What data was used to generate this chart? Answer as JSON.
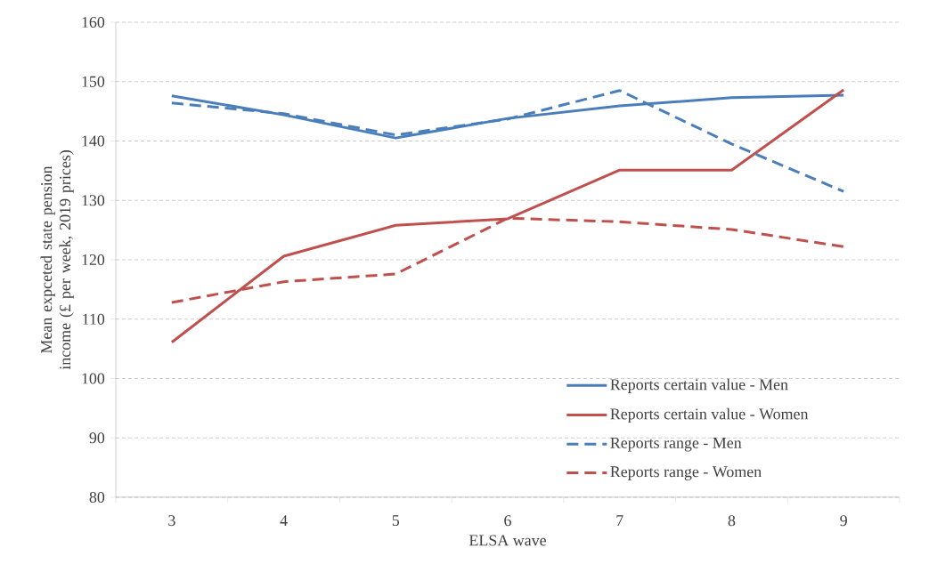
{
  "chart_data": {
    "type": "line",
    "xlabel": "ELSA wave",
    "ylabel": "Mean expceted state pension income (£ per week, 2019 prices)",
    "categories": [
      "3",
      "4",
      "5",
      "6",
      "7",
      "8",
      "9"
    ],
    "series": [
      {
        "name": "Reports certain value - Men",
        "color": "#4a7ebb",
        "line_style": "solid",
        "values": [
          147.6,
          144.4,
          140.5,
          143.8,
          145.9,
          147.3,
          147.7
        ]
      },
      {
        "name": "Reports certain value - Women",
        "color": "#c0504d",
        "line_style": "solid",
        "values": [
          106.1,
          120.6,
          125.8,
          126.9,
          135.1,
          135.1,
          148.6
        ]
      },
      {
        "name": "Reports range - Men",
        "color": "#4a7ebb",
        "line_style": "dashed",
        "values": [
          146.4,
          144.6,
          141.0,
          143.7,
          148.5,
          139.5,
          131.5
        ]
      },
      {
        "name": "Reports range - Women",
        "color": "#c0504d",
        "line_style": "dashed",
        "values": [
          112.8,
          116.3,
          117.6,
          127.0,
          126.4,
          125.1,
          122.2
        ]
      }
    ],
    "ylim": [
      80,
      160
    ],
    "yticks": [
      80,
      90,
      100,
      110,
      120,
      130,
      140,
      150,
      160
    ],
    "grid": "y",
    "legend": "bottom right",
    "marker": "none"
  }
}
